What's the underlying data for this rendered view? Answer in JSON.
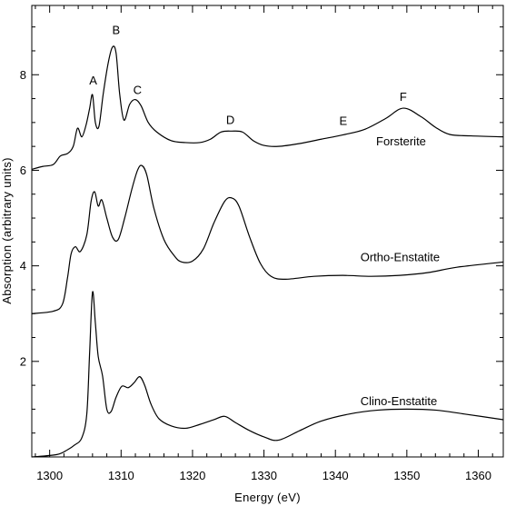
{
  "chart_data": {
    "type": "line",
    "title": "",
    "xlabel": "Energy (eV)",
    "ylabel": "Absorption (arbitrary units)",
    "xlim": [
      1297.5,
      1363.5
    ],
    "ylim": [
      0.0,
      9.45
    ],
    "x_ticks": [
      1300,
      1310,
      1320,
      1330,
      1340,
      1350,
      1360
    ],
    "x_tick_labels": [
      "1300",
      "1310",
      "1320",
      "1330",
      "1340",
      "1350",
      "1360"
    ],
    "x_minor_step": 2,
    "y_ticks": [
      2,
      4,
      6,
      8
    ],
    "y_tick_labels": [
      "2",
      "4",
      "6",
      "8"
    ],
    "y_minor_step": 0.5,
    "grid": false,
    "series": [
      {
        "name": "Forsterite",
        "x": [
          1297.5,
          1299,
          1300.5,
          1301.5,
          1302.5,
          1303.3,
          1303.9,
          1304.5,
          1305.1,
          1305.6,
          1306.0,
          1306.4,
          1306.9,
          1307.5,
          1308.2,
          1308.8,
          1309.3,
          1309.8,
          1310.4,
          1311.2,
          1312.0,
          1312.8,
          1313.8,
          1315,
          1317,
          1319,
          1321,
          1322.5,
          1324,
          1325.5,
          1327,
          1328.5,
          1330,
          1332,
          1335,
          1338,
          1341,
          1344,
          1347,
          1349.5,
          1352,
          1354,
          1356,
          1359,
          1363.5
        ],
        "values": [
          6.02,
          6.08,
          6.12,
          6.3,
          6.35,
          6.5,
          6.88,
          6.7,
          6.95,
          7.3,
          7.58,
          7.0,
          6.92,
          7.6,
          8.25,
          8.58,
          8.45,
          7.6,
          7.05,
          7.38,
          7.48,
          7.35,
          7.0,
          6.8,
          6.62,
          6.58,
          6.58,
          6.65,
          6.8,
          6.82,
          6.8,
          6.62,
          6.52,
          6.5,
          6.56,
          6.65,
          6.74,
          6.85,
          7.08,
          7.3,
          7.12,
          6.9,
          6.75,
          6.72,
          6.7
        ]
      },
      {
        "name": "Ortho-Enstatite",
        "x": [
          1297.5,
          1300.5,
          1301.8,
          1302.5,
          1303.0,
          1303.6,
          1304.3,
          1305.2,
          1305.8,
          1306.3,
          1306.8,
          1307.3,
          1308.0,
          1308.8,
          1309.6,
          1310.5,
          1311.5,
          1312.3,
          1312.9,
          1313.6,
          1314.6,
          1316,
          1317.5,
          1318.5,
          1320,
          1321.5,
          1323,
          1324.5,
          1325.5,
          1326.5,
          1328,
          1329.5,
          1331,
          1333,
          1337,
          1341,
          1345,
          1349,
          1353,
          1357,
          1363.5
        ],
        "values": [
          3.0,
          3.05,
          3.2,
          3.75,
          4.25,
          4.4,
          4.3,
          4.65,
          5.35,
          5.55,
          5.25,
          5.38,
          5.0,
          4.6,
          4.55,
          5.0,
          5.6,
          6.0,
          6.1,
          5.9,
          5.2,
          4.55,
          4.2,
          4.08,
          4.1,
          4.35,
          4.9,
          5.35,
          5.42,
          5.25,
          4.6,
          4.05,
          3.78,
          3.72,
          3.78,
          3.8,
          3.78,
          3.8,
          3.86,
          3.97,
          4.08
        ]
      },
      {
        "name": "Clino-Enstatite",
        "x": [
          1297.5,
          1301,
          1302.5,
          1303.5,
          1304.5,
          1305.2,
          1305.6,
          1306.0,
          1306.4,
          1306.8,
          1307.4,
          1308.0,
          1308.6,
          1309.3,
          1310.1,
          1311.0,
          1311.8,
          1312.6,
          1313.3,
          1314.2,
          1315.3,
          1317,
          1319,
          1321,
          1323,
          1324.5,
          1326,
          1328,
          1330,
          1332,
          1335,
          1338,
          1342,
          1346,
          1350,
          1354,
          1358,
          1363.5
        ],
        "values": [
          0.0,
          0.05,
          0.15,
          0.25,
          0.4,
          0.9,
          2.2,
          3.45,
          2.8,
          2.1,
          1.7,
          1.0,
          0.95,
          1.25,
          1.48,
          1.45,
          1.55,
          1.68,
          1.5,
          1.1,
          0.8,
          0.65,
          0.6,
          0.68,
          0.78,
          0.85,
          0.72,
          0.55,
          0.42,
          0.35,
          0.55,
          0.75,
          0.9,
          0.98,
          1.0,
          0.98,
          0.9,
          0.78
        ]
      }
    ],
    "labels": [
      {
        "text": "Forsterite",
        "x": 1345.7,
        "y": 6.52
      },
      {
        "text": "Ortho-Enstatite",
        "x": 1343.5,
        "y": 4.1
      },
      {
        "text": "Clino-Enstatite",
        "x": 1343.5,
        "y": 1.08
      }
    ],
    "annotations": [
      {
        "text": "A",
        "x": 1306.1,
        "y": 7.8
      },
      {
        "text": "B",
        "x": 1309.3,
        "y": 8.85
      },
      {
        "text": "C",
        "x": 1312.3,
        "y": 7.6
      },
      {
        "text": "D",
        "x": 1325.3,
        "y": 6.97
      },
      {
        "text": "E",
        "x": 1341.1,
        "y": 6.95
      },
      {
        "text": "F",
        "x": 1349.5,
        "y": 7.45
      }
    ]
  }
}
